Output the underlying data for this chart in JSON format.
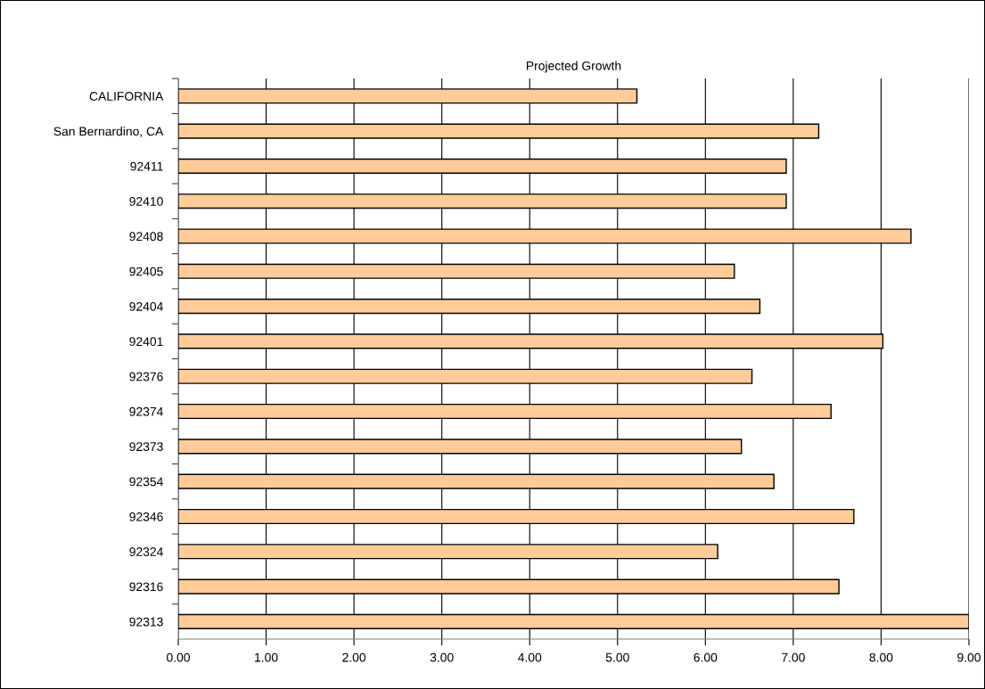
{
  "chart_data": {
    "type": "bar",
    "orientation": "horizontal",
    "title": "Projected Growth",
    "categories": [
      "CALIFORNIA",
      "San Bernardino, CA",
      "92411",
      "92410",
      "92408",
      "92405",
      "92404",
      "92401",
      "92376",
      "92374",
      "92373",
      "92354",
      "92346",
      "92324",
      "92316",
      "92313"
    ],
    "values": [
      5.22,
      7.29,
      6.92,
      6.92,
      8.34,
      6.33,
      6.62,
      8.02,
      6.53,
      7.43,
      6.41,
      6.78,
      7.69,
      6.14,
      7.52,
      9.0
    ],
    "color": "#ffcc99",
    "xlim": [
      0,
      9
    ],
    "xticks": [
      {
        "value": 0,
        "label": "0.00"
      },
      {
        "value": 1,
        "label": "1.00"
      },
      {
        "value": 2,
        "label": "2.00"
      },
      {
        "value": 3,
        "label": "3.00"
      },
      {
        "value": 4,
        "label": "4.00"
      },
      {
        "value": 5,
        "label": "5.00"
      },
      {
        "value": 6,
        "label": "6.00"
      },
      {
        "value": 7,
        "label": "7.00"
      },
      {
        "value": 8,
        "label": "8.00"
      },
      {
        "value": 9,
        "label": "9.00"
      }
    ],
    "grid": "x"
  }
}
